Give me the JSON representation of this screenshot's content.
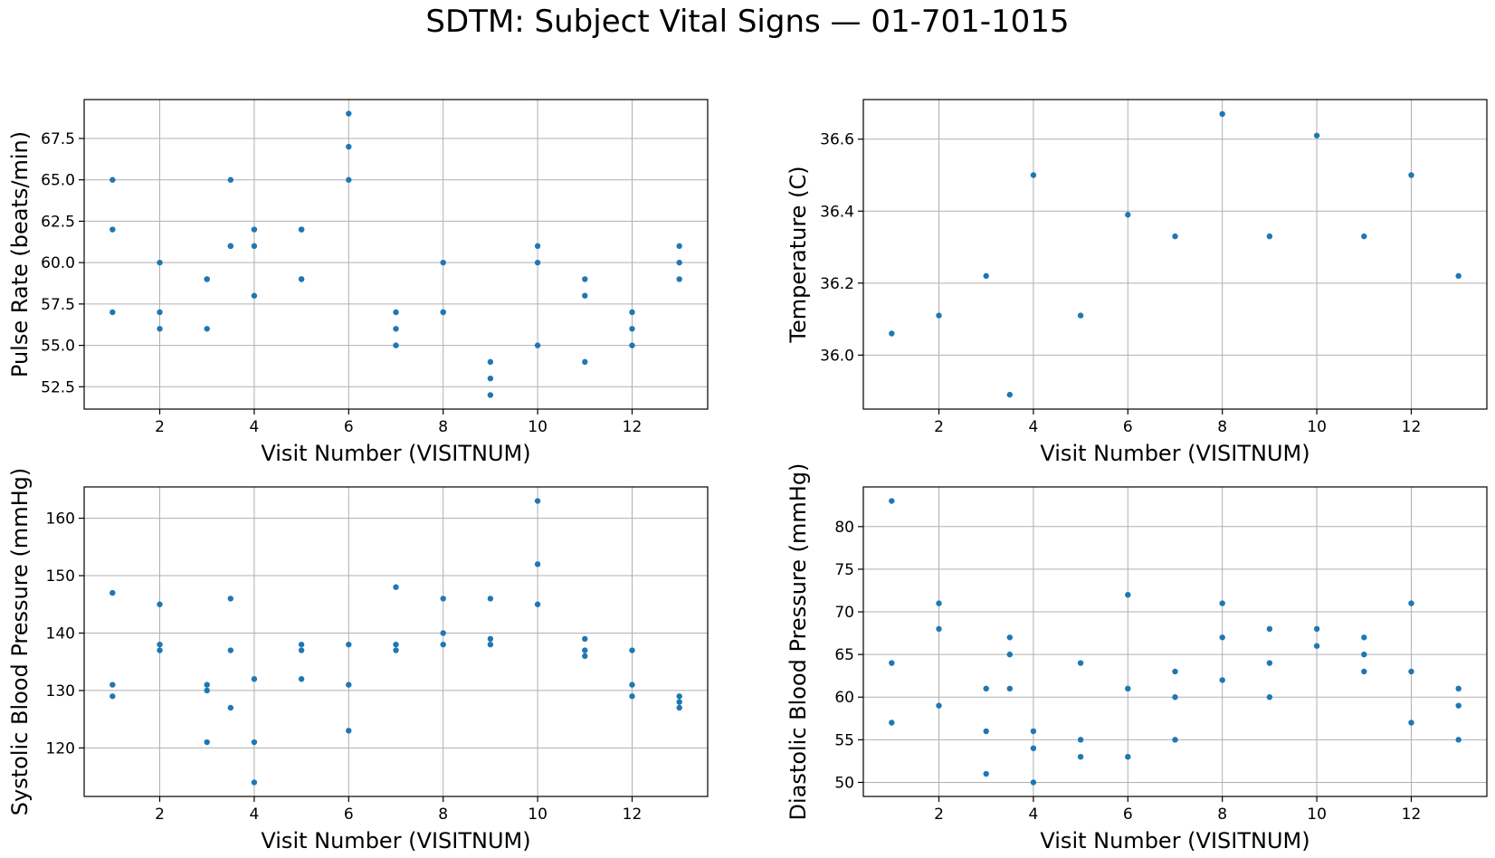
{
  "figure": {
    "title": "SDTM: Subject Vital Signs — 01-701-1015"
  },
  "colors": {
    "marker": "#1f77b4",
    "grid": "#b0b0b0",
    "axes": "#000000"
  },
  "chart_data": [
    {
      "type": "scatter",
      "id": "pulse",
      "xlabel": "Visit Number (VISITNUM)",
      "ylabel": "Pulse Rate (beats/min)",
      "xlim": [
        0.4,
        13.6
      ],
      "ylim": [
        51.15,
        69.85
      ],
      "xticks": [
        2,
        4,
        6,
        8,
        10,
        12
      ],
      "xtick_labels": [
        "2",
        "4",
        "6",
        "8",
        "10",
        "12"
      ],
      "yticks": [
        52.5,
        55.0,
        57.5,
        60.0,
        62.5,
        65.0,
        67.5
      ],
      "ytick_labels": [
        "52.5",
        "55.0",
        "57.5",
        "60.0",
        "62.5",
        "65.0",
        "67.5"
      ],
      "grid": true,
      "x": [
        1,
        1,
        1,
        2,
        2,
        2,
        3,
        3,
        3,
        3.5,
        3.5,
        3.5,
        4,
        4,
        4,
        5,
        5,
        5,
        5,
        6,
        6,
        6,
        7,
        7,
        7,
        8,
        8,
        8,
        9,
        9,
        9,
        10,
        10,
        10,
        11,
        11,
        11,
        12,
        12,
        12,
        13,
        13,
        13
      ],
      "y": [
        65,
        62,
        57,
        60,
        57,
        56,
        59,
        59,
        56,
        65,
        61,
        61,
        62,
        61,
        58,
        62,
        62,
        59,
        59,
        69,
        67,
        65,
        57,
        56,
        55,
        60,
        57,
        57,
        54,
        53,
        52,
        61,
        60,
        55,
        59,
        58,
        54,
        57,
        56,
        55,
        61,
        60,
        59
      ]
    },
    {
      "type": "scatter",
      "id": "temperature",
      "xlabel": "Visit Number (VISITNUM)",
      "ylabel": "Temperature (C)",
      "xlim": [
        0.4,
        13.6
      ],
      "ylim": [
        35.85,
        36.71
      ],
      "xticks": [
        2,
        4,
        6,
        8,
        10,
        12
      ],
      "xtick_labels": [
        "2",
        "4",
        "6",
        "8",
        "10",
        "12"
      ],
      "yticks": [
        36.0,
        36.2,
        36.4,
        36.6
      ],
      "ytick_labels": [
        "36.0",
        "36.2",
        "36.4",
        "36.6"
      ],
      "grid": true,
      "x": [
        1,
        2,
        3,
        3.5,
        4,
        5,
        6,
        7,
        8,
        9,
        10,
        11,
        12,
        13
      ],
      "y": [
        36.06,
        36.11,
        36.22,
        35.89,
        36.5,
        36.11,
        36.39,
        36.33,
        36.67,
        36.33,
        36.61,
        36.33,
        36.5,
        36.22
      ]
    },
    {
      "type": "scatter",
      "id": "systolic",
      "xlabel": "Visit Number (VISITNUM)",
      "ylabel": "Systolic Blood Pressure (mmHg)",
      "xlim": [
        0.4,
        13.6
      ],
      "ylim": [
        111.55,
        165.45
      ],
      "xticks": [
        2,
        4,
        6,
        8,
        10,
        12
      ],
      "xtick_labels": [
        "2",
        "4",
        "6",
        "8",
        "10",
        "12"
      ],
      "yticks": [
        120,
        130,
        140,
        150,
        160
      ],
      "ytick_labels": [
        "120",
        "130",
        "140",
        "150",
        "160"
      ],
      "grid": true,
      "x": [
        1,
        1,
        1,
        2,
        2,
        2,
        3,
        3,
        3,
        3.5,
        3.5,
        3.5,
        4,
        4,
        4,
        5,
        5,
        5,
        6,
        6,
        6,
        7,
        7,
        7,
        8,
        8,
        8,
        9,
        9,
        9,
        10,
        10,
        10,
        11,
        11,
        11,
        12,
        12,
        12,
        13,
        13,
        13
      ],
      "y": [
        147,
        131,
        129,
        145,
        138,
        137,
        131,
        130,
        121,
        146,
        137,
        127,
        132,
        121,
        114,
        138,
        137,
        132,
        138,
        131,
        123,
        148,
        138,
        137,
        146,
        140,
        138,
        146,
        139,
        138,
        163,
        152,
        145,
        139,
        137,
        136,
        137,
        131,
        129,
        129,
        128,
        127
      ]
    },
    {
      "type": "scatter",
      "id": "diastolic",
      "xlabel": "Visit Number (VISITNUM)",
      "ylabel": "Diastolic Blood Pressure (mmHg)",
      "xlim": [
        0.4,
        13.6
      ],
      "ylim": [
        48.35,
        84.65
      ],
      "xticks": [
        2,
        4,
        6,
        8,
        10,
        12
      ],
      "xtick_labels": [
        "2",
        "4",
        "6",
        "8",
        "10",
        "12"
      ],
      "yticks": [
        50,
        55,
        60,
        65,
        70,
        75,
        80
      ],
      "ytick_labels": [
        "50",
        "55",
        "60",
        "65",
        "70",
        "75",
        "80"
      ],
      "grid": true,
      "x": [
        1,
        1,
        1,
        2,
        2,
        2,
        3,
        3,
        3,
        3.5,
        3.5,
        3.5,
        4,
        4,
        4,
        5,
        5,
        5,
        6,
        6,
        6,
        7,
        7,
        7,
        8,
        8,
        8,
        9,
        9,
        9,
        10,
        10,
        11,
        11,
        11,
        12,
        12,
        12,
        13,
        13,
        13
      ],
      "y": [
        83,
        64,
        57,
        71,
        68,
        59,
        61,
        56,
        51,
        67,
        65,
        61,
        56,
        54,
        50,
        64,
        55,
        53,
        72,
        61,
        53,
        63,
        60,
        55,
        71,
        67,
        62,
        68,
        64,
        60,
        68,
        66,
        67,
        65,
        63,
        71,
        63,
        57,
        61,
        59,
        55
      ]
    }
  ]
}
